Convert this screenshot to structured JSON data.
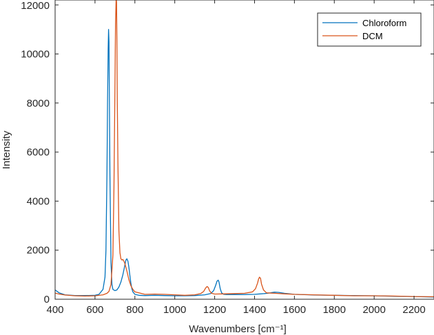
{
  "chart_data": {
    "type": "line",
    "title": "",
    "xlabel": "Wavenumbers [cm⁻¹]",
    "ylabel": "Intensity",
    "xlim": [
      400,
      2300
    ],
    "ylim": [
      0,
      12200
    ],
    "x_ticks": [
      400,
      600,
      800,
      1000,
      1200,
      1400,
      1600,
      1800,
      2000,
      2200
    ],
    "y_ticks": [
      0,
      2000,
      4000,
      6000,
      8000,
      10000,
      12000
    ],
    "grid": false,
    "legend_position": "top-right",
    "series": [
      {
        "name": "Chloroform",
        "color": "#0072BD",
        "x": [
          400,
          420,
          450,
          500,
          550,
          600,
          620,
          640,
          650,
          655,
          660,
          663,
          666,
          668,
          670,
          672,
          675,
          680,
          685,
          690,
          700,
          710,
          720,
          730,
          740,
          750,
          755,
          760,
          765,
          770,
          775,
          780,
          785,
          790,
          800,
          820,
          850,
          900,
          950,
          1000,
          1050,
          1100,
          1150,
          1180,
          1195,
          1205,
          1212,
          1218,
          1222,
          1228,
          1235,
          1245,
          1260,
          1300,
          1350,
          1400,
          1450,
          1480,
          1500,
          1520,
          1550,
          1600,
          1700,
          1800,
          1900,
          2000,
          2100,
          2200,
          2300
        ],
        "y": [
          380,
          260,
          180,
          150,
          150,
          160,
          200,
          400,
          900,
          2000,
          5200,
          8000,
          10200,
          11000,
          10500,
          8500,
          5000,
          1500,
          600,
          400,
          350,
          380,
          500,
          700,
          1000,
          1400,
          1600,
          1650,
          1550,
          1300,
          950,
          650,
          430,
          300,
          200,
          160,
          150,
          160,
          150,
          140,
          140,
          150,
          180,
          230,
          350,
          560,
          740,
          780,
          700,
          430,
          260,
          200,
          190,
          190,
          190,
          200,
          230,
          260,
          290,
          280,
          240,
          200,
          170,
          160,
          150,
          140,
          120,
          110,
          90
        ]
      },
      {
        "name": "DCM",
        "color": "#D95319",
        "x": [
          400,
          420,
          450,
          500,
          550,
          600,
          640,
          660,
          670,
          680,
          690,
          695,
          700,
          703,
          706,
          708,
          710,
          712,
          715,
          720,
          725,
          730,
          735,
          740,
          745,
          750,
          760,
          770,
          780,
          790,
          800,
          850,
          900,
          950,
          1000,
          1050,
          1100,
          1130,
          1145,
          1155,
          1162,
          1168,
          1175,
          1185,
          1200,
          1250,
          1300,
          1350,
          1390,
          1405,
          1415,
          1420,
          1425,
          1430,
          1435,
          1445,
          1460,
          1500,
          1550,
          1600,
          1700,
          1800,
          1900,
          2000,
          2100,
          2200,
          2300
        ],
        "y": [
          250,
          210,
          170,
          140,
          130,
          140,
          180,
          240,
          320,
          600,
          1800,
          4500,
          8500,
          11200,
          12300,
          12100,
          10500,
          8000,
          5500,
          2800,
          1900,
          1650,
          1600,
          1620,
          1550,
          1450,
          1150,
          800,
          550,
          400,
          300,
          200,
          210,
          200,
          180,
          160,
          180,
          230,
          320,
          460,
          520,
          480,
          340,
          240,
          210,
          220,
          230,
          240,
          300,
          430,
          650,
          820,
          900,
          850,
          620,
          380,
          260,
          240,
          220,
          200,
          180,
          160,
          140,
          140,
          130,
          110,
          100
        ]
      }
    ]
  }
}
